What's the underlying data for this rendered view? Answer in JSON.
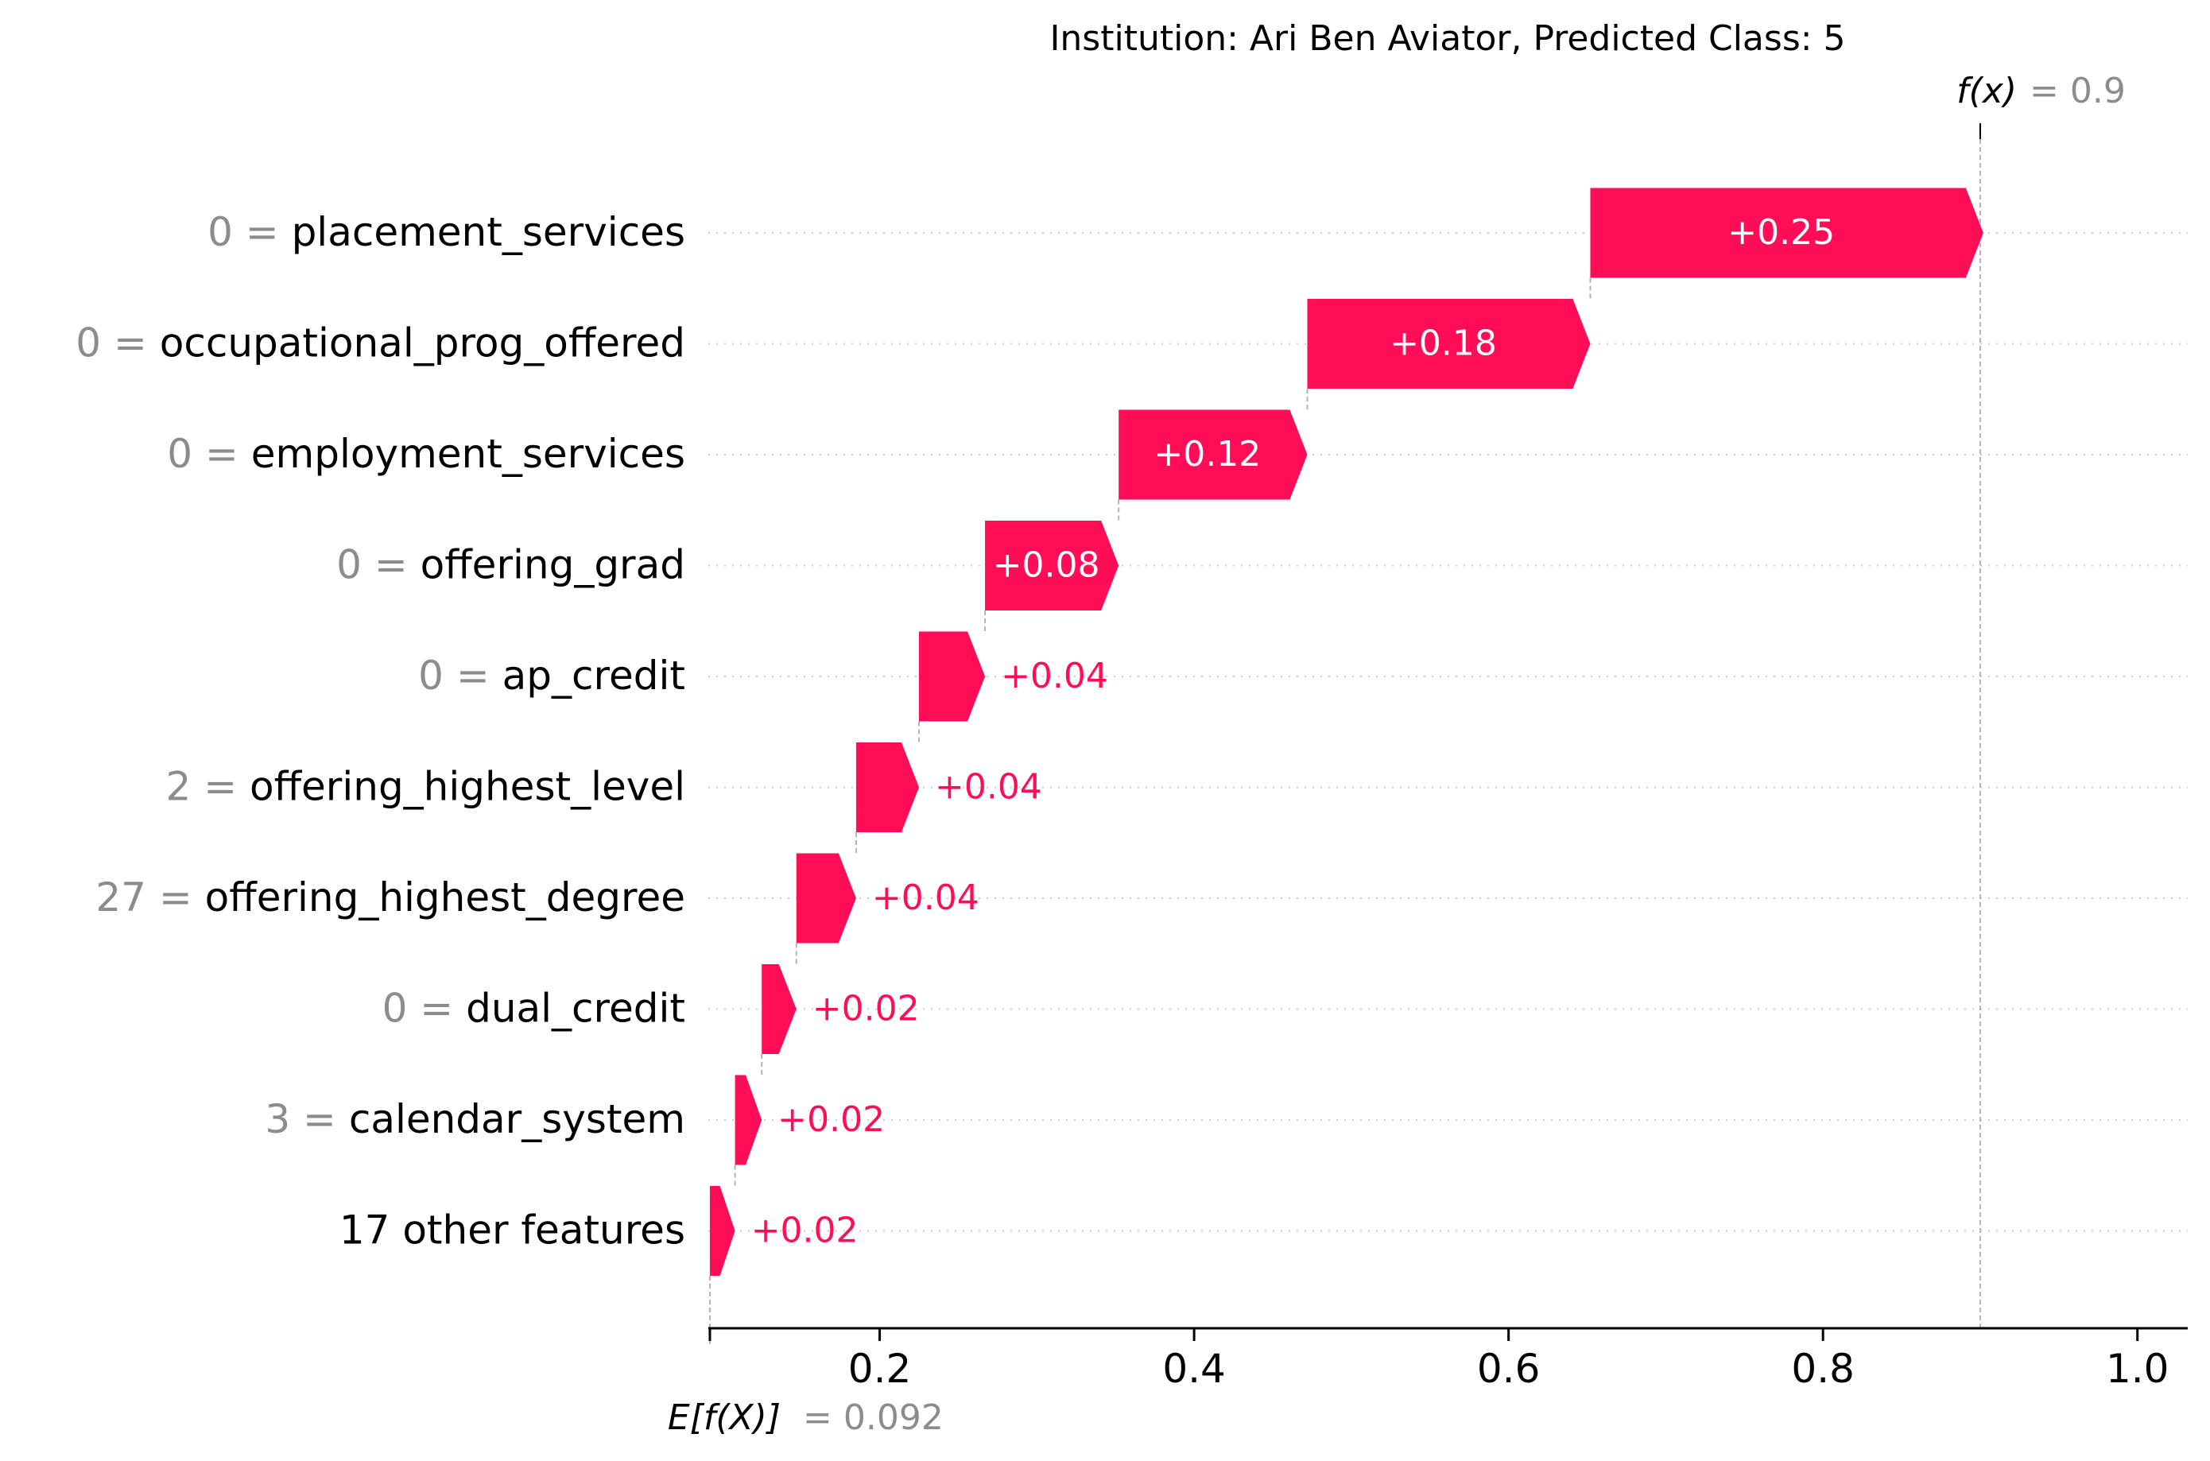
{
  "chart_data": {
    "type": "waterfall",
    "title": "Institution: Ari Ben Aviator, Predicted Class: 5",
    "fx_label": "f(x)",
    "fx_value_text": "= 0.9",
    "fx_value": 0.9,
    "efx_label": "E[f(X)]",
    "efx_value_text": "= 0.092",
    "base_value": 0.092,
    "xlim": [
      0.091,
      1.032
    ],
    "xticks": [
      0.2,
      0.4,
      0.6,
      0.8,
      1.0
    ],
    "xtick_labels": [
      "0.2",
      "0.4",
      "0.6",
      "0.8",
      "1.0"
    ],
    "grid": "dotted horizontal per row",
    "features": [
      {
        "value": "0",
        "name": "placement_services",
        "shap": 0.25,
        "label": "+0.25"
      },
      {
        "value": "0",
        "name": "occupational_prog_offered",
        "shap": 0.18,
        "label": "+0.18"
      },
      {
        "value": "0",
        "name": "employment_services",
        "shap": 0.12,
        "label": "+0.12"
      },
      {
        "value": "0",
        "name": "offering_grad",
        "shap": 0.085,
        "label": "+0.08"
      },
      {
        "value": "0",
        "name": "ap_credit",
        "shap": 0.042,
        "label": "+0.04"
      },
      {
        "value": "2",
        "name": "offering_highest_level",
        "shap": 0.04,
        "label": "+0.04"
      },
      {
        "value": "27",
        "name": "offering_highest_degree",
        "shap": 0.038,
        "label": "+0.04"
      },
      {
        "value": "0",
        "name": "dual_credit",
        "shap": 0.022,
        "label": "+0.02"
      },
      {
        "value": "3",
        "name": "calendar_system",
        "shap": 0.017,
        "label": "+0.02"
      },
      {
        "value": "",
        "name": "17 other features",
        "shap": 0.016,
        "label": "+0.02"
      }
    ]
  },
  "colors": {
    "positive": "#ff0d57",
    "label_dim": "#8c8c8c",
    "text": "#000000",
    "grid": "#cccccc",
    "guide": "#b3b3b3"
  }
}
